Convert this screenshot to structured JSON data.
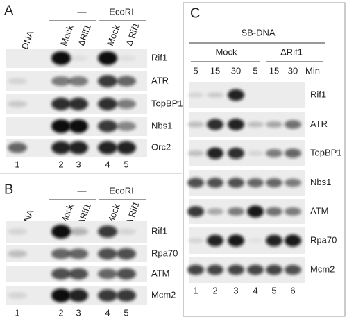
{
  "panels": [
    {
      "label": "A",
      "headers": [
        "No DNA",
        "Mock",
        "ΔRif1",
        "Mock",
        "Δ Rif1"
      ],
      "groups": [
        "—",
        "EcoRI"
      ],
      "rows": [
        "Rif1",
        "ATR",
        "TopBP1",
        "Nbs1",
        "Orc2"
      ],
      "lanes": [
        "1",
        "2",
        "3",
        "4",
        "5"
      ]
    },
    {
      "label": "B",
      "headers": [
        "No DNA",
        "Mock",
        "ΔRif1",
        "Mock",
        "Δ Rif1"
      ],
      "groups": [
        "—",
        "EcoRI"
      ],
      "rows": [
        "Rif1",
        "Rpa70",
        "ATM",
        "Mcm2"
      ],
      "lanes": [
        "1",
        "2",
        "3",
        "4",
        "5"
      ]
    },
    {
      "label": "C",
      "title": "SB-DNA",
      "groups": [
        "Mock",
        "ΔRif1"
      ],
      "times": [
        "5",
        "15",
        "30",
        "5",
        "15",
        "30"
      ],
      "time_unit": "Min",
      "rows": [
        "Rif1",
        "ATR",
        "TopBP1",
        "Nbs1",
        "ATM",
        "Rpa70",
        "Mcm2"
      ],
      "lanes": [
        "1",
        "2",
        "3",
        "4",
        "5",
        "6"
      ]
    }
  ]
}
